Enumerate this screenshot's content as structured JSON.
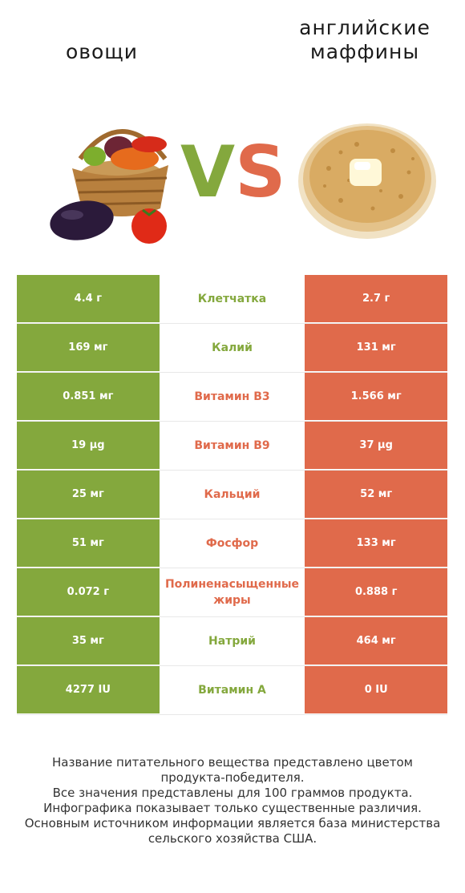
{
  "titles": {
    "left": "овощи",
    "right": "английские маффины"
  },
  "vs": {
    "v": "V",
    "s": "S"
  },
  "colors": {
    "left": "#84a83d",
    "right": "#e06a4b"
  },
  "rows": [
    {
      "left": "4.4 г",
      "nutrient": "Клетчатка",
      "right": "2.7 г",
      "winner": "left"
    },
    {
      "left": "169 мг",
      "nutrient": "Калий",
      "right": "131 мг",
      "winner": "left"
    },
    {
      "left": "0.851 мг",
      "nutrient": "Витамин B3",
      "right": "1.566 мг",
      "winner": "right"
    },
    {
      "left": "19 µg",
      "nutrient": "Витамин B9",
      "right": "37 µg",
      "winner": "right"
    },
    {
      "left": "25 мг",
      "nutrient": "Кальций",
      "right": "52 мг",
      "winner": "right"
    },
    {
      "left": "51 мг",
      "nutrient": "Фосфор",
      "right": "133 мг",
      "winner": "right"
    },
    {
      "left": "0.072 г",
      "nutrient": "Полиненасыщенные жиры",
      "right": "0.888 г",
      "winner": "right"
    },
    {
      "left": "35 мг",
      "nutrient": "Натрий",
      "right": "464 мг",
      "winner": "left"
    },
    {
      "left": "4277 IU",
      "nutrient": "Витамин A",
      "right": "0 IU",
      "winner": "left"
    }
  ],
  "footnote": [
    "Название питательного вещества представлено цветом",
    "продукта-победителя.",
    "Все значения представлены для 100 граммов продукта.",
    "Инфографика показывает только существенные различия.",
    "Основным источником информации является база министерства",
    "сельского хозяйства США."
  ],
  "chart_data": {
    "type": "table",
    "series": [
      {
        "name": "овощи",
        "values": [
          "4.4 г",
          "169 мг",
          "0.851 мг",
          "19 µg",
          "25 мг",
          "51 мг",
          "0.072 г",
          "35 мг",
          "4277 IU"
        ]
      },
      {
        "name": "английские маффины",
        "values": [
          "2.7 г",
          "131 мг",
          "1.566 мг",
          "37 µg",
          "52 мг",
          "133 мг",
          "0.888 г",
          "464 мг",
          "0 IU"
        ]
      }
    ],
    "categories": [
      "Клетчатка",
      "Калий",
      "Витамин B3",
      "Витамин B9",
      "Кальций",
      "Фосфор",
      "Полиненасыщенные жиры",
      "Натрий",
      "Витамин A"
    ]
  }
}
